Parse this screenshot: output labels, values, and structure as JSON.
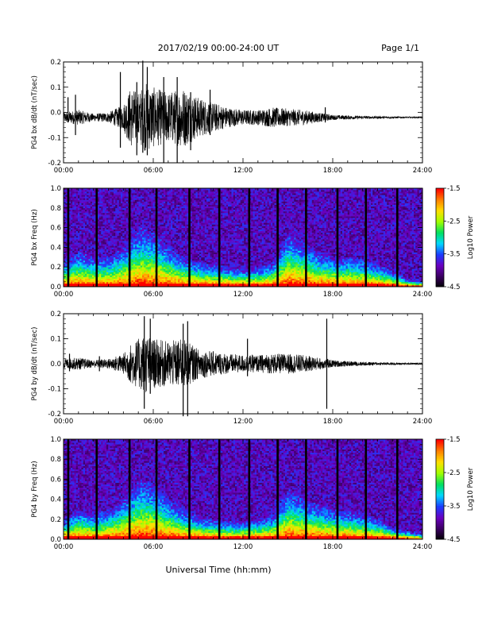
{
  "header": {
    "title": "2017/02/19  00:00-24:00 UT",
    "page": "Page 1/1"
  },
  "xaxis": {
    "label": "Universal Time (hh:mm)",
    "ticks": [
      "00:00",
      "06:00",
      "12:00",
      "18:00",
      "24:00"
    ],
    "range_hours": [
      0,
      24
    ]
  },
  "colorbar": {
    "label": "Log10 Power",
    "ticks": [
      "-1.5",
      "-2.5",
      "-3.5",
      "-4.5"
    ],
    "range": [
      -4.5,
      -1.5
    ],
    "colors": [
      "#000000",
      "#3a0060",
      "#6a00c0",
      "#1b3cff",
      "#00d8ff",
      "#00e060",
      "#a0ff00",
      "#ffe000",
      "#ff8000",
      "#ff0000"
    ]
  },
  "chart_data": [
    {
      "type": "line",
      "name": "PG4 bx dB/dt",
      "ylabel": "PG4 bx dB/dt (nT/sec)",
      "ylim": [
        -0.2,
        0.2
      ],
      "yticks": [
        "0.2",
        "0.1",
        "0.0",
        "-0.1",
        "-0.2"
      ],
      "baseline": -0.02,
      "envelope_hours": [
        0,
        1,
        2,
        3,
        4,
        4.5,
        5,
        5.5,
        6,
        7,
        8,
        9,
        10,
        11,
        12,
        13,
        14,
        15,
        16,
        17,
        18,
        19,
        20,
        21,
        22,
        23,
        24
      ],
      "envelope_amp": [
        0.02,
        0.03,
        0.015,
        0.02,
        0.05,
        0.12,
        0.1,
        0.14,
        0.12,
        0.1,
        0.12,
        0.08,
        0.06,
        0.04,
        0.03,
        0.03,
        0.04,
        0.035,
        0.03,
        0.02,
        0.01,
        0.008,
        0.006,
        0.005,
        0.004,
        0.003,
        0.003
      ],
      "spikes": [
        {
          "x": 0.3,
          "lo": -0.04,
          "hi": 0.06
        },
        {
          "x": 0.8,
          "lo": -0.09,
          "hi": 0.07
        },
        {
          "x": 3.8,
          "lo": -0.14,
          "hi": 0.16
        },
        {
          "x": 4.9,
          "lo": -0.17,
          "hi": 0.12
        },
        {
          "x": 5.3,
          "lo": -0.16,
          "hi": 0.22
        },
        {
          "x": 5.6,
          "lo": -0.17,
          "hi": 0.18
        },
        {
          "x": 6.7,
          "lo": -0.2,
          "hi": 0.14
        },
        {
          "x": 7.6,
          "lo": -0.2,
          "hi": 0.14
        },
        {
          "x": 8.5,
          "lo": -0.15,
          "hi": 0.08
        },
        {
          "x": 9.8,
          "lo": -0.09,
          "hi": 0.09
        },
        {
          "x": 17.5,
          "lo": -0.04,
          "hi": 0.02
        }
      ]
    },
    {
      "type": "heatmap",
      "name": "PG4 bx Freq",
      "ylabel": "PG4 bx Freq (Hz)",
      "ylim": [
        0,
        1.0
      ],
      "yticks": [
        "1.0",
        "0.8",
        "0.6",
        "0.4",
        "0.2",
        "0.0"
      ],
      "black_columns_hours": [
        0.3,
        2.2,
        4.4,
        6.2,
        8.4,
        10.4,
        12.4,
        14.3,
        16.2,
        18.3,
        20.2,
        22.3
      ],
      "activity_hours": [
        0,
        1,
        2,
        3,
        4,
        5,
        6,
        7,
        8,
        9,
        10,
        11,
        12,
        13,
        14,
        15,
        16,
        17,
        18,
        19,
        20,
        21,
        22,
        23,
        24
      ],
      "activity_freq_top_hz": [
        0.25,
        0.35,
        0.3,
        0.3,
        0.4,
        0.6,
        0.55,
        0.4,
        0.3,
        0.25,
        0.22,
        0.2,
        0.18,
        0.2,
        0.25,
        0.55,
        0.45,
        0.35,
        0.3,
        0.3,
        0.28,
        0.22,
        0.15,
        0.08,
        0.05
      ]
    },
    {
      "type": "line",
      "name": "PG4 by dB/dt",
      "ylabel": "PG4 by dB/dt (nT/sec)",
      "ylim": [
        -0.2,
        0.2
      ],
      "yticks": [
        "0.2",
        "0.1",
        "0.0",
        "-0.1",
        "-0.2"
      ],
      "baseline": 0.0,
      "envelope_hours": [
        0,
        1,
        2,
        3,
        4,
        4.5,
        5,
        5.5,
        6,
        7,
        8,
        9,
        10,
        11,
        12,
        13,
        14,
        15,
        16,
        17,
        18,
        19,
        20,
        21,
        22,
        23,
        24
      ],
      "envelope_amp": [
        0.02,
        0.025,
        0.015,
        0.02,
        0.04,
        0.08,
        0.1,
        0.12,
        0.1,
        0.09,
        0.1,
        0.06,
        0.05,
        0.04,
        0.035,
        0.035,
        0.04,
        0.04,
        0.035,
        0.025,
        0.015,
        0.01,
        0.008,
        0.006,
        0.005,
        0.004,
        0.003
      ],
      "spikes": [
        {
          "x": 0.4,
          "lo": -0.03,
          "hi": 0.04
        },
        {
          "x": 2.4,
          "lo": -0.03,
          "hi": 0.03
        },
        {
          "x": 5.4,
          "lo": -0.18,
          "hi": 0.19
        },
        {
          "x": 5.8,
          "lo": -0.12,
          "hi": 0.18
        },
        {
          "x": 8.0,
          "lo": -0.21,
          "hi": 0.16
        },
        {
          "x": 8.3,
          "lo": -0.21,
          "hi": 0.17
        },
        {
          "x": 12.3,
          "lo": -0.05,
          "hi": 0.1
        },
        {
          "x": 17.6,
          "lo": -0.18,
          "hi": 0.18
        }
      ]
    },
    {
      "type": "heatmap",
      "name": "PG4 by Freq",
      "ylabel": "PG4 by Freq (Hz)",
      "ylim": [
        0,
        1.0
      ],
      "yticks": [
        "1.0",
        "0.8",
        "0.6",
        "0.4",
        "0.2",
        "0.0"
      ],
      "black_columns_hours": [
        0.3,
        2.2,
        4.4,
        6.2,
        8.4,
        10.4,
        12.4,
        14.3,
        16.2,
        18.3,
        20.2,
        22.3
      ],
      "activity_hours": [
        0,
        1,
        2,
        3,
        4,
        5,
        6,
        7,
        8,
        9,
        10,
        11,
        12,
        13,
        14,
        15,
        16,
        17,
        18,
        19,
        20,
        21,
        22,
        23,
        24
      ],
      "activity_freq_top_hz": [
        0.2,
        0.3,
        0.25,
        0.3,
        0.4,
        0.6,
        0.55,
        0.4,
        0.3,
        0.22,
        0.2,
        0.18,
        0.17,
        0.2,
        0.25,
        0.5,
        0.4,
        0.35,
        0.3,
        0.28,
        0.25,
        0.2,
        0.12,
        0.08,
        0.05
      ]
    }
  ]
}
